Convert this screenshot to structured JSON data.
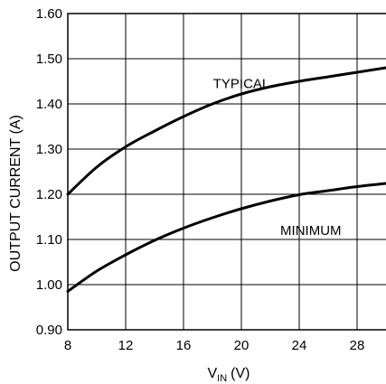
{
  "chart_data": {
    "type": "line",
    "title": "",
    "xlabel": {
      "main": "V",
      "sub": "IN",
      "unit": "(V)"
    },
    "ylabel": "OUTPUT CURRENT (A)",
    "xlim": [
      8,
      30
    ],
    "ylim": [
      0.9,
      1.6
    ],
    "xticks": [
      8,
      12,
      16,
      20,
      24,
      28
    ],
    "yticks": [
      0.9,
      1.0,
      1.1,
      1.2,
      1.3,
      1.4,
      1.5,
      1.6
    ],
    "xtick_labels": [
      "8",
      "12",
      "16",
      "20",
      "24",
      "28"
    ],
    "ytick_labels": [
      "0.90",
      "1.00",
      "1.10",
      "1.20",
      "1.30",
      "1.40",
      "1.50",
      "1.60"
    ],
    "grid": true,
    "legend": "none",
    "series": [
      {
        "name": "TYPICAL",
        "x": [
          8,
          10,
          12,
          14,
          16,
          18,
          20,
          22,
          24,
          26,
          28,
          30
        ],
        "y": [
          1.2,
          1.26,
          1.305,
          1.34,
          1.372,
          1.4,
          1.422,
          1.438,
          1.45,
          1.46,
          1.47,
          1.48
        ]
      },
      {
        "name": "MINIMUM",
        "x": [
          8,
          10,
          12,
          14,
          16,
          18,
          20,
          22,
          24,
          26,
          28,
          30
        ],
        "y": [
          0.985,
          1.03,
          1.066,
          1.098,
          1.125,
          1.148,
          1.168,
          1.185,
          1.199,
          1.208,
          1.217,
          1.224
        ]
      }
    ]
  }
}
